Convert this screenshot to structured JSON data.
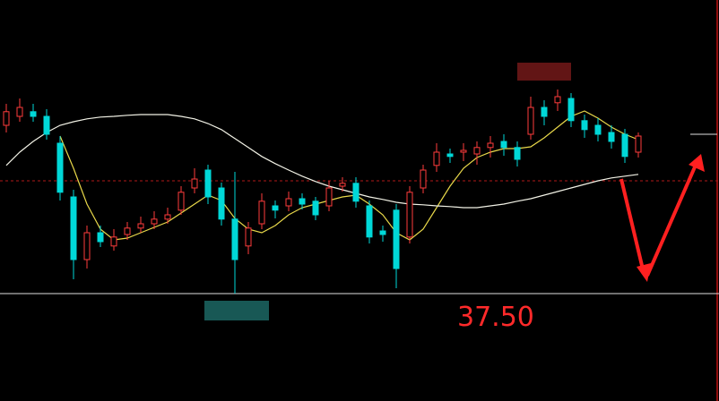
{
  "chart_data": {
    "type": "candlestick",
    "ylim": [
      34.5,
      45.7
    ],
    "up_color": "#ff3c3c",
    "down_color": "#00d8d8",
    "candles": {
      "open": [
        42.2,
        42.45,
        42.58,
        42.45,
        41.7,
        40.2,
        38.45,
        39.2,
        38.83,
        39.15,
        39.33,
        39.45,
        39.58,
        39.83,
        40.45,
        40.95,
        40.45,
        39.58,
        38.83,
        39.45,
        39.95,
        39.95,
        40.15,
        40.08,
        39.95,
        40.5,
        40.58,
        39.95,
        39.25,
        39.83,
        39.08,
        40.45,
        41.08,
        41.4,
        41.45,
        41.4,
        41.58,
        41.75,
        41.58,
        41.95,
        42.7,
        42.83,
        42.95,
        42.33,
        42.2,
        42.0,
        41.95,
        41.45
      ],
      "high": [
        42.8,
        42.95,
        42.8,
        42.65,
        41.9,
        40.4,
        39.4,
        39.4,
        39.3,
        39.5,
        39.65,
        39.8,
        39.9,
        40.5,
        41.0,
        41.1,
        40.6,
        40.9,
        39.5,
        40.3,
        40.1,
        40.35,
        40.3,
        40.2,
        40.65,
        40.75,
        40.75,
        40.1,
        39.4,
        40.0,
        40.5,
        41.1,
        41.7,
        41.55,
        41.7,
        41.75,
        41.9,
        41.95,
        41.75,
        43.0,
        42.9,
        43.2,
        43.1,
        42.5,
        42.4,
        42.2,
        42.1,
        42.0
      ],
      "low": [
        42.0,
        42.3,
        42.3,
        41.8,
        40.1,
        37.9,
        38.2,
        38.8,
        38.7,
        39.0,
        39.2,
        39.3,
        39.45,
        39.7,
        40.3,
        40.0,
        39.4,
        37.5,
        38.6,
        39.3,
        39.6,
        39.8,
        39.85,
        39.55,
        39.8,
        40.35,
        39.9,
        38.9,
        38.95,
        37.65,
        38.9,
        40.3,
        40.9,
        41.15,
        41.2,
        41.1,
        41.3,
        41.35,
        41.05,
        41.8,
        42.2,
        42.6,
        42.15,
        41.85,
        41.75,
        41.55,
        41.15,
        41.3
      ],
      "close": [
        42.58,
        42.7,
        42.45,
        41.95,
        40.33,
        38.45,
        39.2,
        38.95,
        39.08,
        39.33,
        39.45,
        39.58,
        39.7,
        40.33,
        40.7,
        40.2,
        39.58,
        38.45,
        39.33,
        40.08,
        39.83,
        40.15,
        40.0,
        39.7,
        40.45,
        40.58,
        40.08,
        39.08,
        39.15,
        38.2,
        40.33,
        40.95,
        41.45,
        41.33,
        41.5,
        41.58,
        41.7,
        41.58,
        41.25,
        42.7,
        42.45,
        43.0,
        42.33,
        42.08,
        41.95,
        41.75,
        41.33,
        41.9
      ]
    },
    "series": [
      {
        "color": "#e8d84a",
        "values": [
          null,
          null,
          null,
          null,
          41.9,
          41.0,
          40.0,
          39.3,
          39.0,
          39.05,
          39.2,
          39.35,
          39.5,
          39.75,
          40.0,
          40.25,
          40.1,
          39.6,
          39.3,
          39.2,
          39.4,
          39.7,
          39.9,
          40.0,
          40.1,
          40.2,
          40.25,
          40.0,
          39.7,
          39.2,
          39.0,
          39.3,
          39.9,
          40.5,
          41.0,
          41.3,
          41.45,
          41.55,
          41.55,
          41.6,
          41.85,
          42.15,
          42.45,
          42.6,
          42.4,
          42.15,
          41.95,
          41.8
        ]
      },
      {
        "color": "#f2f2e6",
        "values": [
          41.08,
          41.45,
          41.75,
          42.0,
          42.2,
          42.3,
          42.38,
          42.43,
          42.45,
          42.48,
          42.5,
          42.5,
          42.5,
          42.45,
          42.38,
          42.25,
          42.08,
          41.83,
          41.58,
          41.33,
          41.13,
          40.95,
          40.78,
          40.63,
          40.5,
          40.4,
          40.3,
          40.2,
          40.13,
          40.05,
          40.0,
          39.98,
          39.95,
          39.93,
          39.9,
          39.9,
          39.95,
          40.0,
          40.08,
          40.15,
          40.25,
          40.35,
          40.45,
          40.55,
          40.65,
          40.73,
          40.78,
          40.83
        ]
      }
    ],
    "hlines": [
      {
        "value": 37.5,
        "label": "37.50",
        "color": "#e0e0e0"
      },
      {
        "value": 40.65,
        "color": "#b01818",
        "dashed": true
      },
      {
        "value": 41.95,
        "color": "#e0e0e0",
        "short": true
      }
    ]
  }
}
